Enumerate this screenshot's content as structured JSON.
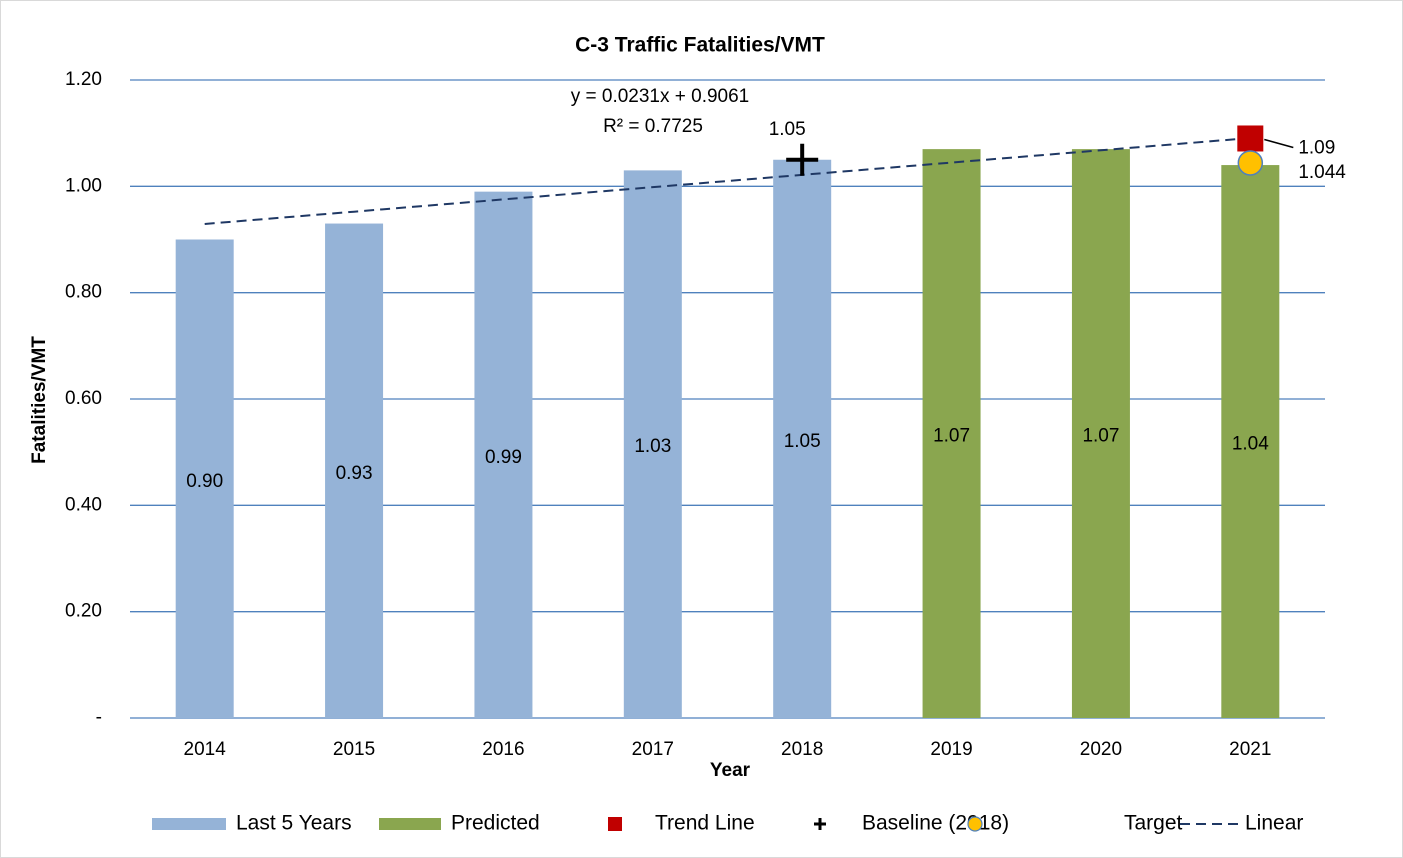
{
  "chart_data": {
    "type": "bar",
    "title": "C-3 Traffic Fatalities/VMT",
    "x_label": "Year",
    "y_label": "Fatalities/VMT",
    "annotations": [
      "y = 0.0231x + 0.9061",
      "R² = 0.7725"
    ],
    "categories": [
      "2014",
      "2015",
      "2016",
      "2017",
      "2018",
      "2019",
      "2020",
      "2021"
    ],
    "series": [
      {
        "name": "Last 5 Years",
        "type": "bar",
        "color": "#95b3d7",
        "values": [
          0.9,
          0.93,
          0.99,
          1.03,
          1.05,
          null,
          null,
          null
        ],
        "value_labels": [
          "0.90",
          "0.93",
          "0.99",
          "1.03",
          "1.05",
          null,
          null,
          null
        ]
      },
      {
        "name": "Predicted",
        "type": "bar",
        "color": "#8aa64f",
        "values": [
          null,
          null,
          null,
          null,
          null,
          1.07,
          1.07,
          1.04
        ]
      },
      {
        "name": "Trend Line",
        "type": "marker",
        "marker": "square",
        "color": "#c00000",
        "values": [
          null,
          null,
          null,
          null,
          null,
          null,
          null,
          1.09
        ]
      },
      {
        "name": "Baseline (2018)",
        "type": "marker",
        "marker": "plus",
        "color": "#000000",
        "values": [
          null,
          null,
          null,
          null,
          1.05,
          null,
          null,
          null
        ]
      },
      {
        "name": "Target",
        "type": "marker",
        "marker": "circle",
        "color": "#ffc000",
        "values": [
          null,
          null,
          null,
          null,
          null,
          null,
          null,
          1.044
        ]
      },
      {
        "name": "Linear",
        "type": "line",
        "dashed": true,
        "color": "#1f3864",
        "values": [
          0.9292,
          0.9523,
          0.9754,
          0.9985,
          1.0216,
          1.0447,
          1.0678,
          1.0909
        ]
      }
    ],
    "ylim": [
      0,
      1.2
    ],
    "yticks": [
      {
        "value": 0,
        "label": "-"
      },
      {
        "value": 0.2,
        "label": "0.20"
      },
      {
        "value": 0.4,
        "label": "0.40"
      },
      {
        "value": 0.6,
        "label": "0.60"
      },
      {
        "value": 0.8,
        "label": "0.80"
      },
      {
        "value": 1.0,
        "label": "1.00"
      },
      {
        "value": 1.2,
        "label": "1.20"
      }
    ],
    "grid": true,
    "legend": "bottom"
  }
}
